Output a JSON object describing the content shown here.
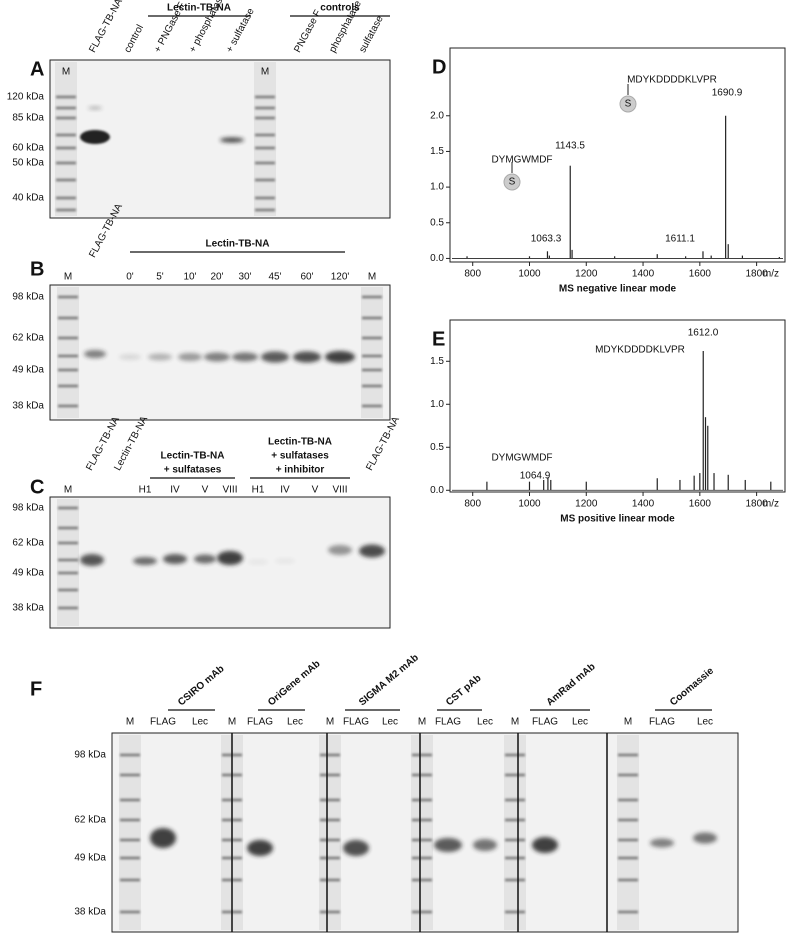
{
  "panels": [
    {
      "letter": "A",
      "groups": [
        {
          "lines": [
            "Lectin-TB-NA"
          ]
        },
        {
          "lines": [
            "controls"
          ]
        }
      ],
      "lanes": [
        "M",
        "FLAG-TB-NA",
        "control",
        "+ PNGase F",
        "+ phosphatase",
        "+ sulfatase",
        "M",
        "PNGase F",
        "phosphatase",
        "sulfatase"
      ],
      "markers": [
        "120 kDa",
        "85 kDa",
        "60 kDa",
        "50 kDa",
        "40 kDa"
      ]
    },
    {
      "letter": "B",
      "groups": [
        {
          "lines": [
            "Lectin-TB-NA"
          ]
        }
      ],
      "lanes": [
        "M",
        "FLAG-TB-NA",
        "0'",
        "5'",
        "10'",
        "20'",
        "30'",
        "45'",
        "60'",
        "120'",
        "M"
      ],
      "markers": [
        "98 kDa",
        "62 kDa",
        "49 kDa",
        "38 kDa"
      ]
    },
    {
      "letter": "C",
      "groups": [
        {
          "lines": [
            "Lectin-TB-NA",
            "+ sulfatases"
          ]
        },
        {
          "lines": [
            "Lectin-TB-NA",
            "+ sulfatases",
            "+ inhibitor"
          ]
        }
      ],
      "lanes": [
        "M",
        "FLAG-TB-NA",
        "Lectin-TB-NA",
        "H1",
        "IV",
        "V",
        "VIII",
        "H1",
        "IV",
        "V",
        "VIII",
        "FLAG-TB-NA"
      ],
      "markers": [
        "98 kDa",
        "62 kDa",
        "49 kDa",
        "38 kDa"
      ]
    },
    {
      "letter": "F",
      "groups": [
        {
          "lines": [
            "CSIRO mAb"
          ]
        },
        {
          "lines": [
            "OriGene mAb"
          ]
        },
        {
          "lines": [
            "SIGMA M2 mAb"
          ]
        },
        {
          "lines": [
            "CST pAb"
          ]
        },
        {
          "lines": [
            "AmRad mAb"
          ]
        },
        {
          "lines": [
            "Coomassie"
          ]
        }
      ],
      "lanes": [
        "M",
        "FLAG",
        "Lec",
        "M",
        "FLAG",
        "Lec",
        "M",
        "FLAG",
        "Lec",
        "M",
        "FLAG",
        "Lec",
        "M",
        "FLAG",
        "Lec",
        "M",
        "FLAG",
        "Lec"
      ],
      "markers": [
        "98 kDa",
        "62 kDa",
        "49 kDa",
        "38 kDa"
      ]
    }
  ],
  "chart_data": [
    {
      "type": "stem",
      "panel_label": "D",
      "title": "MS negative linear mode",
      "xlabel": "m/z",
      "x": [
        780,
        1000,
        1063.3,
        1070,
        1143.5,
        1150,
        1300,
        1450,
        1550,
        1611.1,
        1640,
        1690.9,
        1700,
        1750,
        1880
      ],
      "values": [
        0.03,
        0.03,
        0.1,
        0.04,
        1.3,
        0.12,
        0.03,
        0.06,
        0.03,
        0.1,
        0.04,
        2.0,
        0.2,
        0.04,
        0.02
      ],
      "color": "#222222",
      "xlim": [
        720,
        1900
      ],
      "ylim": [
        -0.05,
        2.95
      ],
      "xticks": [
        800,
        1000,
        1200,
        1400,
        1600,
        1800
      ],
      "yticks": [
        {
          "value": 0,
          "label": "0.0"
        },
        {
          "value": 0.5,
          "label": "0.5"
        },
        {
          "value": 1,
          "label": "1.0"
        },
        {
          "value": 1.5,
          "label": "1.5"
        },
        {
          "value": 2,
          "label": "2.0"
        }
      ],
      "annotations": [
        "DYMGWMDF",
        "S",
        "1063.3",
        "1143.5",
        "MDYKDDDDKLVPR",
        "S",
        "1611.1",
        "1690.9"
      ]
    },
    {
      "type": "stem",
      "panel_label": "E",
      "title": "MS positive linear mode",
      "xlabel": "m/z",
      "x": [
        850,
        1000,
        1050,
        1064.9,
        1075,
        1200,
        1450,
        1530,
        1580,
        1600,
        1612.0,
        1620,
        1628,
        1650,
        1700,
        1760,
        1850
      ],
      "values": [
        0.1,
        0.1,
        0.12,
        0.15,
        0.12,
        0.1,
        0.14,
        0.12,
        0.17,
        0.2,
        1.62,
        0.85,
        0.75,
        0.2,
        0.18,
        0.12,
        0.1
      ],
      "color": "#222222",
      "xlim": [
        720,
        1900
      ],
      "ylim": [
        -0.02,
        1.98
      ],
      "xticks": [
        800,
        1000,
        1200,
        1400,
        1600,
        1800
      ],
      "yticks": [
        {
          "value": 0,
          "label": "0.0"
        },
        {
          "value": 0.5,
          "label": "0.5"
        },
        {
          "value": 1,
          "label": "1.0"
        },
        {
          "value": 1.5,
          "label": "1.5"
        }
      ],
      "annotations": [
        "1612.0",
        "MDYKDDDDKLVPR",
        "DYMGWMDF",
        "1064.9"
      ]
    }
  ]
}
